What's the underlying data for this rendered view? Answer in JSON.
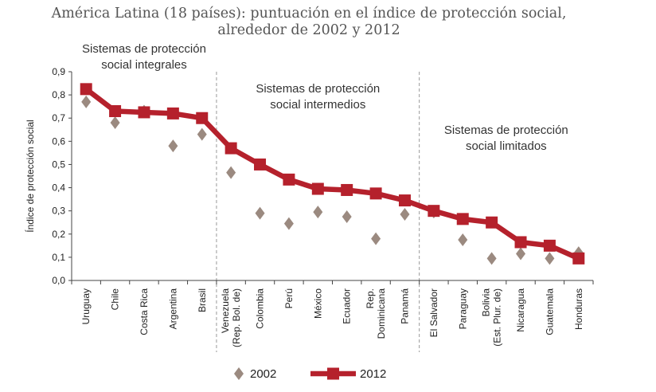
{
  "chart_data": {
    "type": "line",
    "title_lines": [
      "América Latina (18 países): puntuación en el índice de protección social,",
      "alrededor de 2002 y 2012"
    ],
    "ylabel": "Índice de protección social",
    "ylim": [
      0,
      0.9
    ],
    "yticks": [
      "0,0",
      "0,1",
      "0,2",
      "0,3",
      "0,4",
      "0,5",
      "0,6",
      "0,7",
      "0,8",
      "0,9"
    ],
    "categories": [
      [
        "Uruguay"
      ],
      [
        "Chile"
      ],
      [
        "Costa Rica"
      ],
      [
        "Argentina"
      ],
      [
        "Brasil"
      ],
      [
        "Venezuela",
        "(Rep. Bol. de)"
      ],
      [
        "Colombia"
      ],
      [
        "Perú"
      ],
      [
        "México"
      ],
      [
        "Ecuador"
      ],
      [
        "Rep.",
        "Dominicana"
      ],
      [
        "Panamá"
      ],
      [
        "El Salvador"
      ],
      [
        "Paraguay"
      ],
      [
        "Bolivia",
        "(Est. Plur. de)"
      ],
      [
        "Nicaragua"
      ],
      [
        "Guatemala"
      ],
      [
        "Honduras"
      ]
    ],
    "series": [
      {
        "name": "2002",
        "marker": "diamond",
        "color": "#9b8a80",
        "values": [
          0.77,
          0.68,
          0.73,
          0.58,
          0.63,
          0.465,
          0.29,
          0.245,
          0.295,
          0.275,
          0.18,
          0.285,
          0.295,
          0.175,
          0.095,
          0.115,
          0.095,
          0.12
        ]
      },
      {
        "name": "2012",
        "marker": "square-line",
        "color": "#b5212c",
        "values": [
          0.825,
          0.73,
          0.725,
          0.72,
          0.7,
          0.57,
          0.5,
          0.435,
          0.395,
          0.39,
          0.375,
          0.345,
          0.3,
          0.265,
          0.25,
          0.165,
          0.15,
          0.095
        ]
      }
    ],
    "groups": [
      {
        "lines": [
          "Sistemas de protección",
          "social integrales"
        ],
        "from": 0,
        "to": 4
      },
      {
        "lines": [
          "Sistemas de protección",
          "social intermedios"
        ],
        "from": 5,
        "to": 11
      },
      {
        "lines": [
          "Sistemas de protección",
          "social limitados"
        ],
        "from": 12,
        "to": 17
      }
    ],
    "grid": false,
    "legend_position": "bottom-center"
  }
}
